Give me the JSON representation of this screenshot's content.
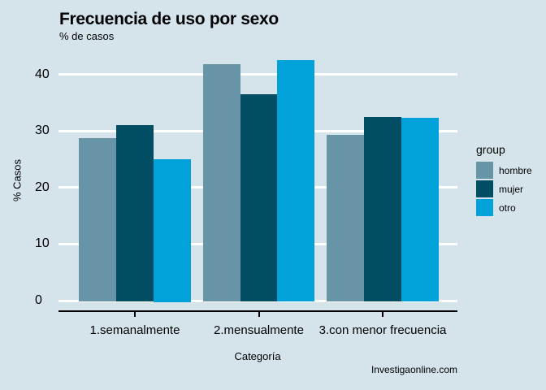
{
  "header": {
    "title": "Frecuencia de uso por sexo",
    "subtitle": "% de casos"
  },
  "footer": {
    "watermark": "Investigaonline.com"
  },
  "colors": {
    "background": "#d5e4eb",
    "gridline": "#ffffff",
    "axis": "#000000",
    "text": "#000000",
    "series_hombre": "#6794a7",
    "series_mujer": "#014d64",
    "series_otro": "#01a2d9"
  },
  "chart_data": {
    "type": "bar",
    "title": "Frecuencia de uso por sexo",
    "subtitle": "% de casos",
    "xlabel": "Categoría",
    "ylabel": "% Casos",
    "categories": [
      "1.semanalmente",
      "2.mensualmente",
      "3.con menor frecuencia"
    ],
    "series": [
      {
        "name": "hombre",
        "color": "#6794a7",
        "values": [
          28.7,
          41.8,
          29.3
        ]
      },
      {
        "name": "mujer",
        "color": "#014d64",
        "values": [
          31.0,
          36.5,
          32.5
        ]
      },
      {
        "name": "otro",
        "color": "#01a2d9",
        "values": [
          25.0,
          42.5,
          32.3
        ]
      }
    ],
    "y_ticks": [
      0,
      10,
      20,
      30,
      40
    ],
    "ylim": [
      0,
      44.5
    ],
    "grid": "horizontal",
    "legend_title": "group",
    "legend_position": "right"
  }
}
